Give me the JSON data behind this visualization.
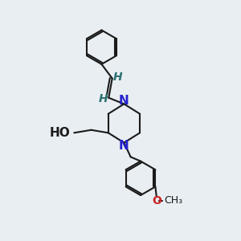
{
  "background_color": "#e8eef2",
  "bond_color": "#1a1a1a",
  "bond_width": 1.5,
  "N_color": "#2222cc",
  "O_color": "#cc2222",
  "H_color": "#2d7070",
  "font_size": 10,
  "figsize": [
    3.0,
    3.0
  ],
  "dpi": 100,
  "xlim": [
    0,
    10
  ],
  "ylim": [
    0,
    10
  ]
}
